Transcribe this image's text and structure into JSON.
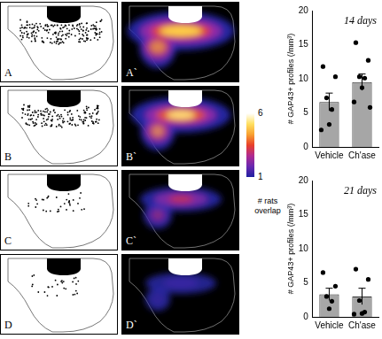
{
  "panels": [
    {
      "left": "A",
      "right": "A`"
    },
    {
      "left": "B",
      "right": "B`"
    },
    {
      "left": "C",
      "right": "C`"
    },
    {
      "left": "D",
      "right": "D`"
    }
  ],
  "colorbar": {
    "range": [
      1,
      6
    ],
    "ticks": [
      6,
      1
    ],
    "label": "# rats overlap"
  },
  "chart_data": [
    {
      "type": "bar",
      "title": "14 days",
      "y_label": "# GAP43+ profiles (/mm³)",
      "categories": [
        "Vehicle",
        "Ch'ase"
      ],
      "values": [
        6.6,
        9.5
      ],
      "errors": [
        1.3,
        1.2
      ],
      "points": [
        [
          11.8,
          10.3,
          7.2,
          5.5,
          3.3,
          2.5
        ],
        [
          15.3,
          12.7,
          10.3,
          10.1,
          8.7,
          6.6,
          5.8
        ]
      ],
      "color": "#a6a6a6",
      "ylim": [
        0,
        20
      ],
      "yticks": [
        0,
        5,
        10,
        15,
        20
      ],
      "grid": false
    },
    {
      "type": "bar",
      "title": "21 days",
      "y_label": "# GAP43+ profiles (/mm³)",
      "categories": [
        "Vehicle",
        "Ch'ase"
      ],
      "values": [
        3.3,
        3.0
      ],
      "errors": [
        0.9,
        1.2
      ],
      "points": [
        [
          6.5,
          4.5,
          3.0,
          2.3,
          1.2
        ],
        [
          7.0,
          5.5,
          2.4,
          0.7,
          0.5,
          0.4
        ]
      ],
      "color": "#a6a6a6",
      "ylim": [
        0,
        20
      ],
      "yticks": [
        0,
        5,
        10,
        15,
        20
      ],
      "grid": false
    }
  ]
}
